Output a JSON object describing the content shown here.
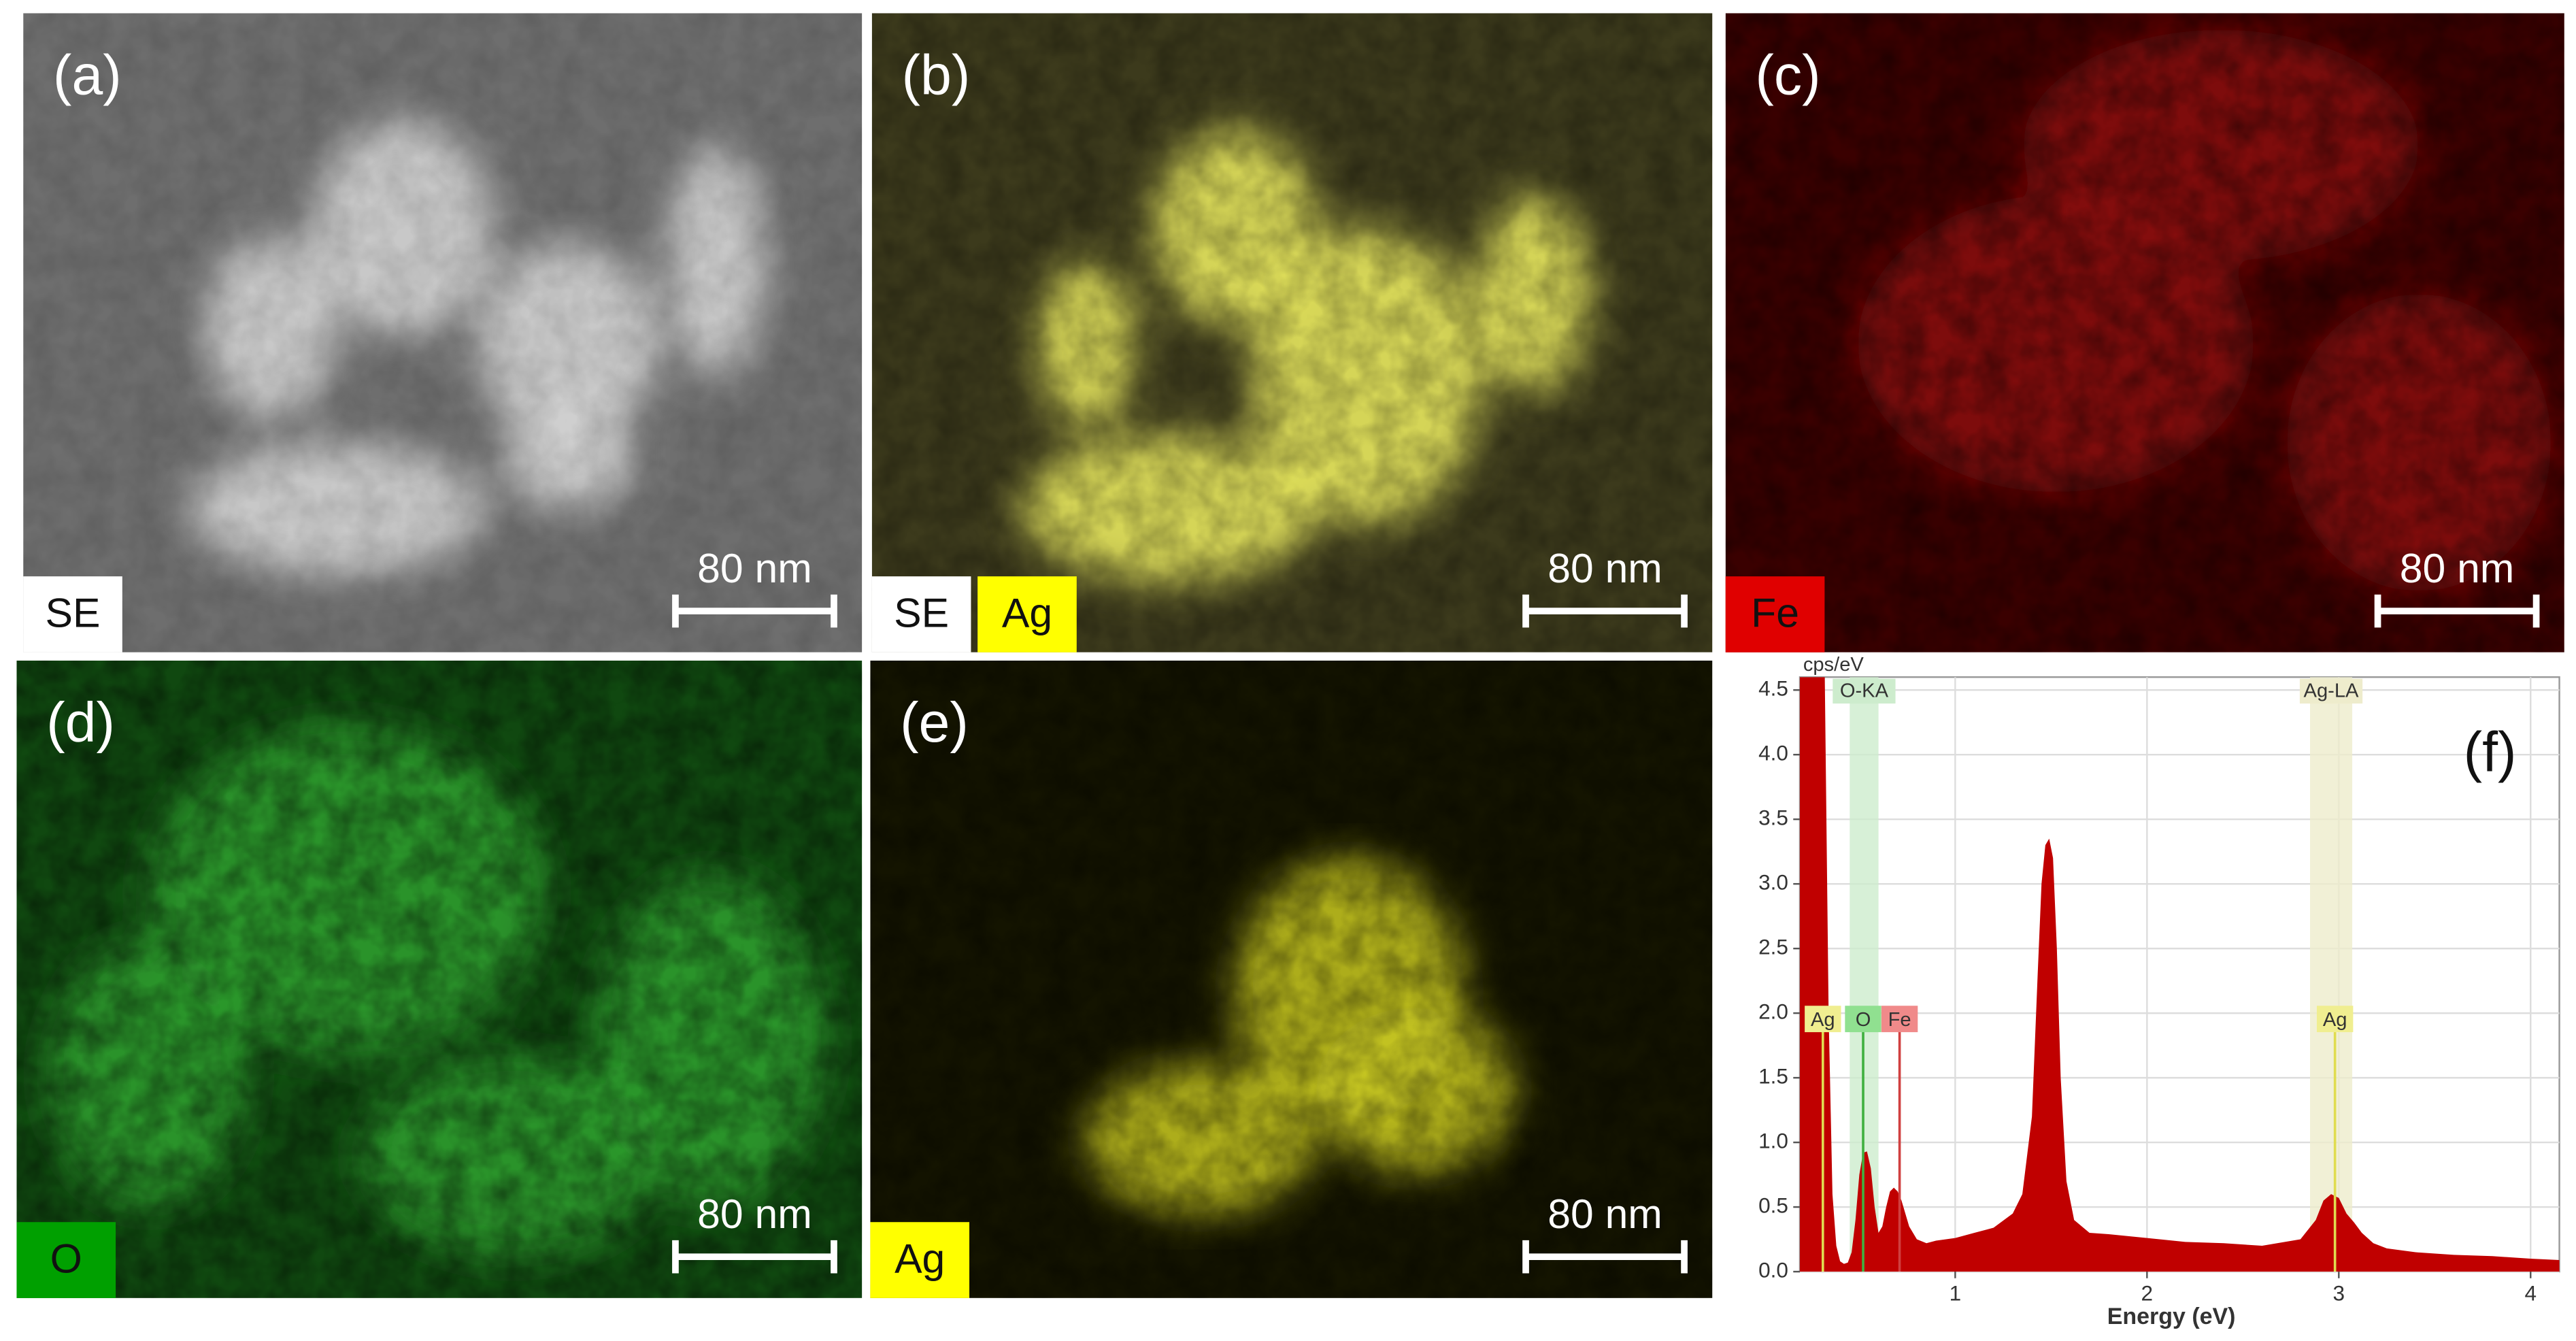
{
  "panels": [
    {
      "label": "(a)",
      "tags": [
        {
          "text": "SE",
          "color": "#ffffff"
        }
      ],
      "scale_bar": "80 nm"
    },
    {
      "label": "(b)",
      "tags": [
        {
          "text": "SE",
          "color": "#ffffff"
        },
        {
          "text": "Ag",
          "color": "#ffff00"
        }
      ],
      "scale_bar": "80 nm"
    },
    {
      "label": "(c)",
      "tags": [
        {
          "text": "Fe",
          "color": "#e00000"
        }
      ],
      "scale_bar": "80 nm"
    },
    {
      "label": "(d)",
      "tags": [
        {
          "text": "O",
          "color": "#00a000"
        }
      ],
      "scale_bar": "80 nm"
    },
    {
      "label": "(e)",
      "tags": [
        {
          "text": "Ag",
          "color": "#ffff00"
        }
      ],
      "scale_bar": "80 nm"
    }
  ],
  "chart_data": {
    "type": "area",
    "panel_label": "(f)",
    "x_label": "Energy (eV)",
    "y_label": "cps/eV",
    "x": [
      0.19,
      0.22,
      0.25,
      0.28,
      0.3,
      0.32,
      0.34,
      0.36,
      0.38,
      0.4,
      0.42,
      0.44,
      0.46,
      0.48,
      0.5,
      0.52,
      0.54,
      0.56,
      0.58,
      0.6,
      0.62,
      0.64,
      0.66,
      0.68,
      0.7,
      0.72,
      0.74,
      0.76,
      0.8,
      0.85,
      0.9,
      1.0,
      1.1,
      1.2,
      1.3,
      1.35,
      1.4,
      1.43,
      1.45,
      1.47,
      1.49,
      1.51,
      1.53,
      1.55,
      1.58,
      1.62,
      1.7,
      1.8,
      2.0,
      2.2,
      2.4,
      2.6,
      2.8,
      2.88,
      2.92,
      2.96,
      3.0,
      3.04,
      3.08,
      3.12,
      3.18,
      3.25,
      3.4,
      3.6,
      3.8,
      4.0,
      4.15
    ],
    "values": [
      4.6,
      4.6,
      4.6,
      4.6,
      4.6,
      4.6,
      2.0,
      0.6,
      0.2,
      0.08,
      0.06,
      0.07,
      0.15,
      0.4,
      0.75,
      0.92,
      0.93,
      0.8,
      0.5,
      0.3,
      0.35,
      0.5,
      0.62,
      0.65,
      0.62,
      0.55,
      0.45,
      0.35,
      0.25,
      0.22,
      0.24,
      0.26,
      0.3,
      0.34,
      0.45,
      0.6,
      1.2,
      2.3,
      3.0,
      3.3,
      3.35,
      3.2,
      2.5,
      1.5,
      0.7,
      0.4,
      0.3,
      0.29,
      0.26,
      0.23,
      0.22,
      0.2,
      0.25,
      0.4,
      0.55,
      0.6,
      0.57,
      0.45,
      0.38,
      0.3,
      0.22,
      0.18,
      0.15,
      0.13,
      0.12,
      0.1,
      0.09
    ],
    "color": "#c00000",
    "xlim": [
      0.19,
      4.15
    ],
    "ylim": [
      0,
      4.6
    ],
    "xticks": [
      1,
      2,
      3,
      4
    ],
    "yticks": [
      {
        "value": 0,
        "label": "0.0"
      },
      0.5,
      {
        "value": 1,
        "label": "1.0"
      },
      1.5,
      {
        "value": 2,
        "label": "2.0"
      },
      2.5,
      {
        "value": 3,
        "label": "3.0"
      },
      3.5,
      {
        "value": 4,
        "label": "4.0"
      },
      4.5
    ],
    "grid": true,
    "bands": [
      {
        "label": "O-KA",
        "range": [
          0.45,
          0.6
        ],
        "color": "#cdeccd"
      },
      {
        "label": "Ag-LA",
        "range": [
          2.85,
          3.07
        ],
        "color": "#eeeccc"
      }
    ],
    "markers": [
      {
        "label": "Ag",
        "energy": 0.31,
        "color": "#f0ee90"
      },
      {
        "label": "O",
        "energy": 0.52,
        "color": "#90e090"
      },
      {
        "label": "Fe",
        "energy": 0.71,
        "color": "#f08a8a"
      },
      {
        "label": "Ag",
        "energy": 2.98,
        "color": "#f0ee90"
      }
    ]
  }
}
